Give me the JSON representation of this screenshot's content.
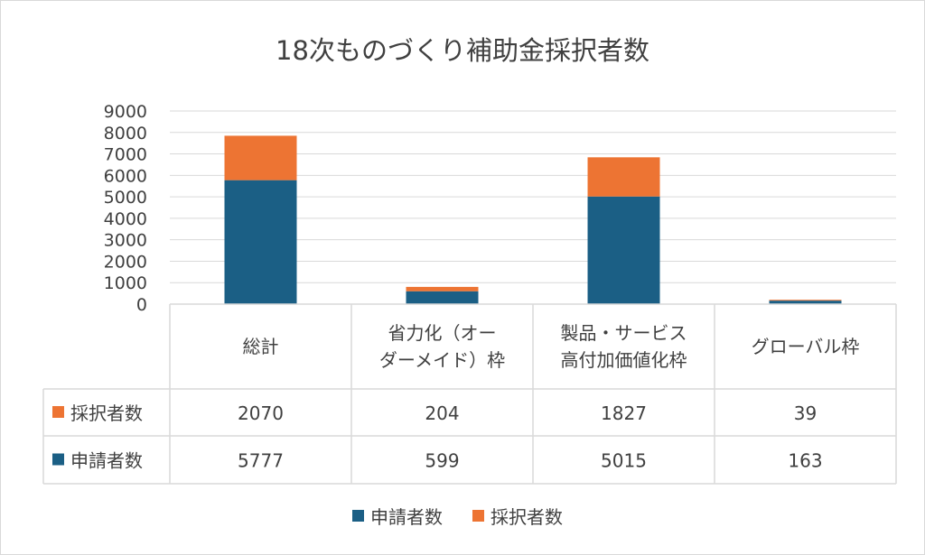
{
  "chart_data": {
    "type": "bar",
    "stacked": true,
    "title": "18次ものづくり補助金採択者数",
    "categories": [
      [
        "総計"
      ],
      [
        "省力化（オー",
        "ダーメイド）枠"
      ],
      [
        "製品・サービス",
        "高付加価値化枠"
      ],
      [
        "グローバル枠"
      ]
    ],
    "series": [
      {
        "name": "申請者数",
        "color": "#1b5f85",
        "values": [
          5777,
          599,
          5015,
          163
        ]
      },
      {
        "name": "採択者数",
        "color": "#ed7433",
        "values": [
          2070,
          204,
          1827,
          39
        ]
      }
    ],
    "ylim": [
      0,
      9000
    ],
    "yticks": [
      0,
      1000,
      2000,
      3000,
      4000,
      5000,
      6000,
      7000,
      8000,
      9000
    ],
    "data_table": {
      "row_order": [
        "採択者数",
        "申請者数"
      ],
      "rows": [
        {
          "name": "採択者数",
          "values": [
            "2070",
            "204",
            "1827",
            "39"
          ]
        },
        {
          "name": "申請者数",
          "values": [
            "5777",
            "599",
            "5015",
            "163"
          ]
        }
      ]
    },
    "legend": {
      "position": "bottom",
      "items": [
        "申請者数",
        "採択者数"
      ]
    },
    "grid": true,
    "xlabel": "",
    "ylabel": ""
  }
}
